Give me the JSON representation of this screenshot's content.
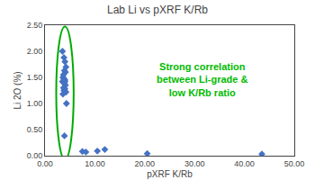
{
  "chart_data": {
    "type": "scatter",
    "title": "Lab Li vs pXRF K/Rb",
    "xlabel": "pXRF K/Rb",
    "ylabel": "Li 2O (%)",
    "x": [
      3.5,
      3.8,
      4.0,
      4.2,
      3.9,
      4.1,
      3.7,
      3.6,
      3.8,
      4.0,
      3.5,
      3.9,
      4.1,
      3.7,
      4.0,
      3.8,
      4.2,
      3.6,
      4.3,
      4.0,
      3.8,
      3.9,
      7.5,
      8.2,
      10.5,
      12.0,
      20.5,
      43.5
    ],
    "values": [
      2.0,
      1.88,
      1.8,
      1.7,
      1.63,
      1.6,
      1.55,
      1.5,
      1.48,
      1.45,
      1.42,
      1.38,
      1.35,
      1.3,
      1.28,
      1.25,
      1.22,
      1.18,
      1.0,
      1.42,
      1.45,
      0.38,
      0.08,
      0.07,
      0.09,
      0.12,
      0.04,
      0.03
    ],
    "color": "#4472C4",
    "marker": "diamond",
    "xlim": [
      0,
      50
    ],
    "ylim": [
      0,
      2.5
    ],
    "xticks": [
      {
        "value": 0,
        "label": "0.00"
      },
      {
        "value": 10.0,
        "label": "10.00"
      },
      {
        "value": 20.0,
        "label": "20.00"
      },
      {
        "value": 30.0,
        "label": "30.00"
      },
      {
        "value": 40.0,
        "label": "40.00"
      },
      {
        "value": 50.0,
        "label": "50.00"
      }
    ],
    "yticks": [
      {
        "value": 0,
        "label": "0.00"
      },
      {
        "value": 0.5,
        "label": "0.50"
      },
      {
        "value": 1.0,
        "label": "1.00"
      },
      {
        "value": 1.5,
        "label": "1.50"
      },
      {
        "value": 2.0,
        "label": "2.00"
      },
      {
        "value": 2.5,
        "label": "2.50"
      }
    ],
    "grid": false,
    "ellipse": {
      "x": 4.0,
      "y": 1.2,
      "width": 3.5,
      "height": 2.55,
      "color": "#00AA00"
    },
    "annotations": [
      {
        "text": "Strong correlation\nbetween Li-grade &\nlow K/Rb ratio",
        "color": "#00BB00"
      }
    ]
  }
}
